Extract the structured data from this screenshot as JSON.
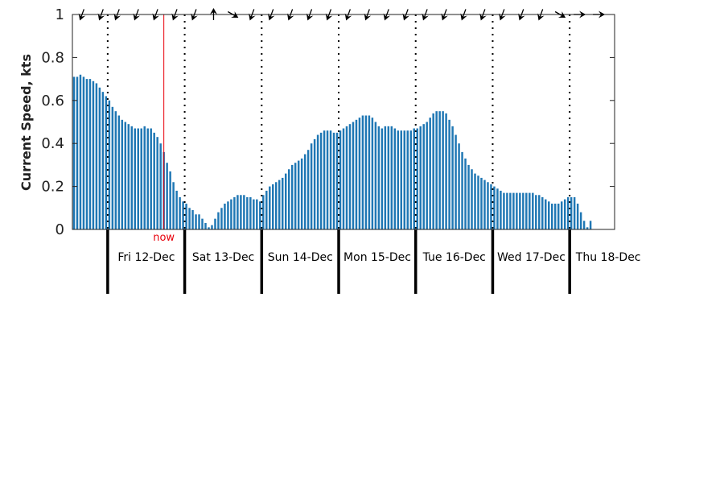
{
  "chart_data": {
    "type": "bar",
    "title": "",
    "xlabel": "",
    "ylabel": "Current Speed, kts",
    "ylim": [
      0,
      1
    ],
    "y_ticks": [
      0,
      0.2,
      0.4,
      0.6,
      0.8,
      1
    ],
    "y_tick_labels": [
      "0",
      "0.2",
      "0.4",
      "0.6",
      "0.8",
      "1"
    ],
    "grid": false,
    "x_unit": "hours",
    "x_start": "Fri 12-Dec 00:00 (approx.)",
    "x_range": [
      -11,
      158
    ],
    "bar_interval_hours": 1,
    "bar_color": "#1f77b4",
    "speeds": [
      0.71,
      0.71,
      0.72,
      0.71,
      0.7,
      0.7,
      0.69,
      0.68,
      0.66,
      0.64,
      0.62,
      0.6,
      0.57,
      0.55,
      0.53,
      0.51,
      0.5,
      0.49,
      0.48,
      0.47,
      0.47,
      0.47,
      0.48,
      0.47,
      0.47,
      0.45,
      0.43,
      0.4,
      0.36,
      0.31,
      0.27,
      0.22,
      0.18,
      0.15,
      0.13,
      0.12,
      0.1,
      0.09,
      0.07,
      0.07,
      0.05,
      0.03,
      0.01,
      0.02,
      0.05,
      0.08,
      0.1,
      0.12,
      0.13,
      0.14,
      0.15,
      0.16,
      0.16,
      0.16,
      0.15,
      0.15,
      0.14,
      0.14,
      0.13,
      0.16,
      0.18,
      0.2,
      0.21,
      0.22,
      0.23,
      0.24,
      0.26,
      0.28,
      0.3,
      0.31,
      0.32,
      0.33,
      0.35,
      0.37,
      0.4,
      0.42,
      0.44,
      0.45,
      0.46,
      0.46,
      0.46,
      0.45,
      0.45,
      0.46,
      0.47,
      0.48,
      0.49,
      0.5,
      0.51,
      0.52,
      0.53,
      0.53,
      0.53,
      0.52,
      0.5,
      0.48,
      0.47,
      0.48,
      0.48,
      0.48,
      0.47,
      0.46,
      0.46,
      0.46,
      0.46,
      0.46,
      0.47,
      0.47,
      0.48,
      0.49,
      0.5,
      0.52,
      0.54,
      0.55,
      0.55,
      0.55,
      0.54,
      0.51,
      0.48,
      0.44,
      0.4,
      0.36,
      0.33,
      0.3,
      0.28,
      0.26,
      0.25,
      0.24,
      0.23,
      0.22,
      0.21,
      0.2,
      0.19,
      0.18,
      0.17,
      0.17,
      0.17,
      0.17,
      0.17,
      0.17,
      0.17,
      0.17,
      0.17,
      0.17,
      0.16,
      0.16,
      0.15,
      0.14,
      0.13,
      0.12,
      0.12,
      0.12,
      0.13,
      0.14,
      0.15,
      0.15,
      0.15,
      0.12,
      0.08,
      0.04,
      0.01,
      0.04
    ],
    "day_boundaries_hours": [
      0,
      24,
      48,
      72,
      96,
      120,
      144
    ],
    "day_labels": [
      "Fri 12-Dec",
      "Sat 13-Dec",
      "Sun 14-Dec",
      "Mon 15-Dec",
      "Tue 16-Dec",
      "Wed 17-Dec",
      "Thu 18-Dec"
    ],
    "now_hour": 17.5,
    "now_label": "now",
    "now_color": "#e8000b",
    "direction_arrows": [
      {
        "hour": -8,
        "heading_deg": 200
      },
      {
        "hour": -2,
        "heading_deg": 200
      },
      {
        "hour": 3,
        "heading_deg": 200
      },
      {
        "hour": 9,
        "heading_deg": 200
      },
      {
        "hour": 15,
        "heading_deg": 200
      },
      {
        "hour": 21,
        "heading_deg": 200
      },
      {
        "hour": 27,
        "heading_deg": 200
      },
      {
        "hour": 33,
        "heading_deg": 0
      },
      {
        "hour": 39,
        "heading_deg": 120
      },
      {
        "hour": 45,
        "heading_deg": 200
      },
      {
        "hour": 51,
        "heading_deg": 200
      },
      {
        "hour": 57,
        "heading_deg": 200
      },
      {
        "hour": 63,
        "heading_deg": 200
      },
      {
        "hour": 69,
        "heading_deg": 200
      },
      {
        "hour": 75,
        "heading_deg": 200
      },
      {
        "hour": 81,
        "heading_deg": 200
      },
      {
        "hour": 87,
        "heading_deg": 200
      },
      {
        "hour": 93,
        "heading_deg": 200
      },
      {
        "hour": 99,
        "heading_deg": 200
      },
      {
        "hour": 105,
        "heading_deg": 200
      },
      {
        "hour": 111,
        "heading_deg": 200
      },
      {
        "hour": 117,
        "heading_deg": 200
      },
      {
        "hour": 123,
        "heading_deg": 200
      },
      {
        "hour": 129,
        "heading_deg": 200
      },
      {
        "hour": 135,
        "heading_deg": 200
      },
      {
        "hour": 141,
        "heading_deg": 120
      },
      {
        "hour": 147,
        "heading_deg": 90
      },
      {
        "hour": 153,
        "heading_deg": 90
      }
    ]
  }
}
